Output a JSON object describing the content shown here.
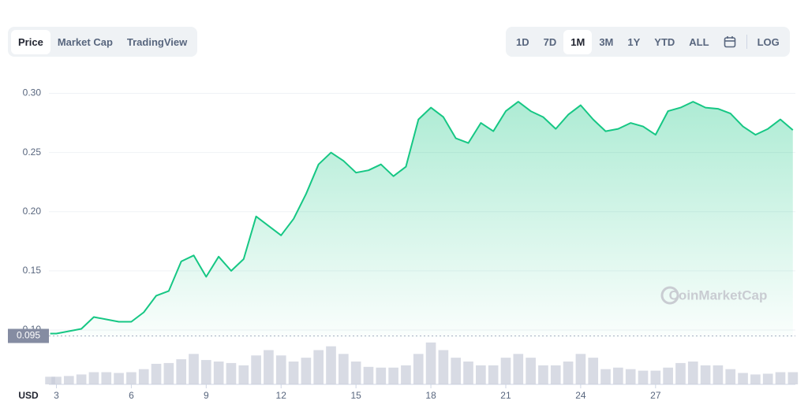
{
  "tabs": [
    "Price",
    "Market Cap",
    "TradingView"
  ],
  "active_tab": 0,
  "ranges": [
    "1D",
    "7D",
    "1M",
    "3M",
    "1Y",
    "YTD",
    "ALL"
  ],
  "active_range": 2,
  "log_button": "LOG",
  "watermark": "CoinMarketCap",
  "chart_data": {
    "type": "line",
    "currency": "USD",
    "color": "#16c784",
    "x": [
      2.75,
      3,
      3.5,
      4,
      4.5,
      5,
      5.5,
      6,
      6.5,
      7,
      7.5,
      8,
      8.5,
      9,
      9.5,
      10,
      10.5,
      11,
      11.5,
      12,
      12.5,
      13,
      13.5,
      14,
      14.5,
      15,
      15.5,
      16,
      16.5,
      17,
      17.5,
      18,
      18.5,
      19,
      19.5,
      20,
      20.5,
      21,
      21.5,
      22,
      22.5,
      23,
      23.5,
      24,
      24.5,
      25,
      25.5,
      26,
      26.5,
      27,
      27.5,
      28,
      28.5,
      29,
      29.5,
      30,
      30.5,
      31,
      31.5,
      32,
      32.5
    ],
    "values": [
      0.097,
      0.097,
      0.099,
      0.101,
      0.111,
      0.109,
      0.107,
      0.107,
      0.115,
      0.129,
      0.133,
      0.158,
      0.163,
      0.145,
      0.162,
      0.15,
      0.16,
      0.196,
      0.188,
      0.18,
      0.194,
      0.215,
      0.24,
      0.25,
      0.243,
      0.233,
      0.235,
      0.24,
      0.23,
      0.238,
      0.278,
      0.288,
      0.28,
      0.262,
      0.258,
      0.275,
      0.268,
      0.285,
      0.293,
      0.285,
      0.28,
      0.27,
      0.282,
      0.29,
      0.278,
      0.268,
      0.27,
      0.275,
      0.272,
      0.265,
      0.285,
      0.288,
      0.293,
      0.288,
      0.287,
      0.283,
      0.272,
      0.265,
      0.27,
      0.278,
      0.269
    ],
    "volume": [
      10,
      10,
      11,
      13,
      16,
      16,
      15,
      16,
      20,
      27,
      28,
      33,
      40,
      32,
      30,
      28,
      25,
      38,
      45,
      38,
      30,
      35,
      45,
      50,
      40,
      30,
      23,
      22,
      22,
      25,
      40,
      55,
      45,
      35,
      30,
      25,
      25,
      35,
      40,
      35,
      25,
      25,
      30,
      40,
      35,
      20,
      22,
      20,
      18,
      18,
      22,
      28,
      30,
      25,
      25,
      20,
      15,
      13,
      14,
      16,
      16
    ],
    "volume_ylim": [
      0,
      60
    ],
    "reference_line": 0.095,
    "xlim": [
      2.7,
      32.6
    ],
    "xticks": [
      3,
      6,
      9,
      12,
      15,
      18,
      21,
      24,
      27
    ],
    "ylim": [
      0.094,
      0.319
    ],
    "yticks": [
      {
        "value": 0.1,
        "label": "0.10"
      },
      {
        "value": 0.15,
        "label": "0.15"
      },
      {
        "value": 0.2,
        "label": "0.20"
      },
      {
        "value": 0.25,
        "label": "0.25"
      },
      {
        "value": 0.3,
        "label": "0.30"
      }
    ],
    "grid": true
  }
}
